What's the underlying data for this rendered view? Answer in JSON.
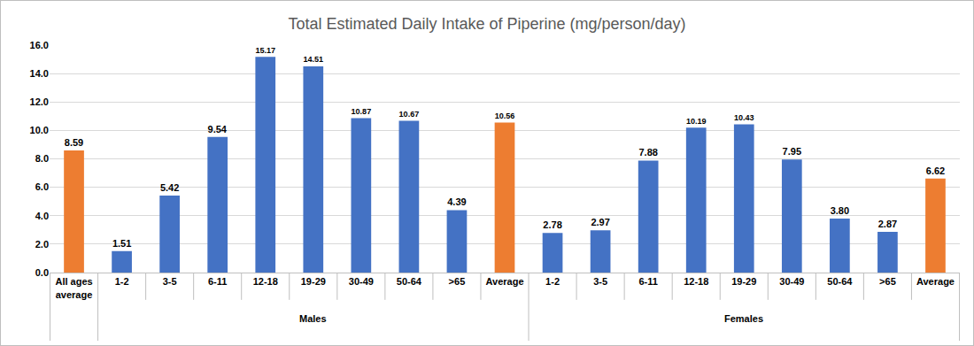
{
  "chart_data": {
    "type": "bar",
    "title": "Total Estimated Daily Intake of Piperine (mg/person/day)",
    "categories": [
      "All ages average",
      "1-2",
      "3-5",
      "6-11",
      "12-18",
      "19-29",
      "30-49",
      "50-64",
      ">65",
      "Average",
      "1-2",
      "3-5",
      "6-11",
      "12-18",
      "19-29",
      "30-49",
      "50-64",
      ">65",
      "Average"
    ],
    "groups": [
      null,
      "Males",
      "Males",
      "Males",
      "Males",
      "Males",
      "Males",
      "Males",
      "Males",
      "Males",
      "Females",
      "Females",
      "Females",
      "Females",
      "Females",
      "Females",
      "Females",
      "Females",
      "Females"
    ],
    "values": [
      8.59,
      1.51,
      5.42,
      9.54,
      15.17,
      14.51,
      10.87,
      10.67,
      4.39,
      10.56,
      2.78,
      2.97,
      7.88,
      10.19,
      10.43,
      7.95,
      3.8,
      2.87,
      6.62
    ],
    "value_labels": [
      "8.59",
      "1.51",
      "5.42",
      "9.54",
      "15.17",
      "14.51",
      "10.87",
      "10.67",
      "4.39",
      "10.56",
      "2.78",
      "2.97",
      "7.88",
      "10.19",
      "10.43",
      "7.95",
      "3.80",
      "2.87",
      "6.62"
    ],
    "colors": [
      "#ed7d31",
      "#4472c4",
      "#4472c4",
      "#4472c4",
      "#4472c4",
      "#4472c4",
      "#4472c4",
      "#4472c4",
      "#4472c4",
      "#ed7d31",
      "#4472c4",
      "#4472c4",
      "#4472c4",
      "#4472c4",
      "#4472c4",
      "#4472c4",
      "#4472c4",
      "#4472c4",
      "#ed7d31"
    ],
    "ylim": [
      0,
      16
    ],
    "yticks": [
      {
        "value": 0,
        "label": "0.0"
      },
      {
        "value": 2,
        "label": "2.0"
      },
      {
        "value": 4,
        "label": "4.0"
      },
      {
        "value": 6,
        "label": "6.0"
      },
      {
        "value": 8,
        "label": "8.0"
      },
      {
        "value": 10,
        "label": "10.0"
      },
      {
        "value": 12,
        "label": "12.0"
      },
      {
        "value": 14,
        "label": "14.0"
      },
      {
        "value": 16,
        "label": "16.0"
      }
    ],
    "grid": true,
    "data_labels": true
  }
}
